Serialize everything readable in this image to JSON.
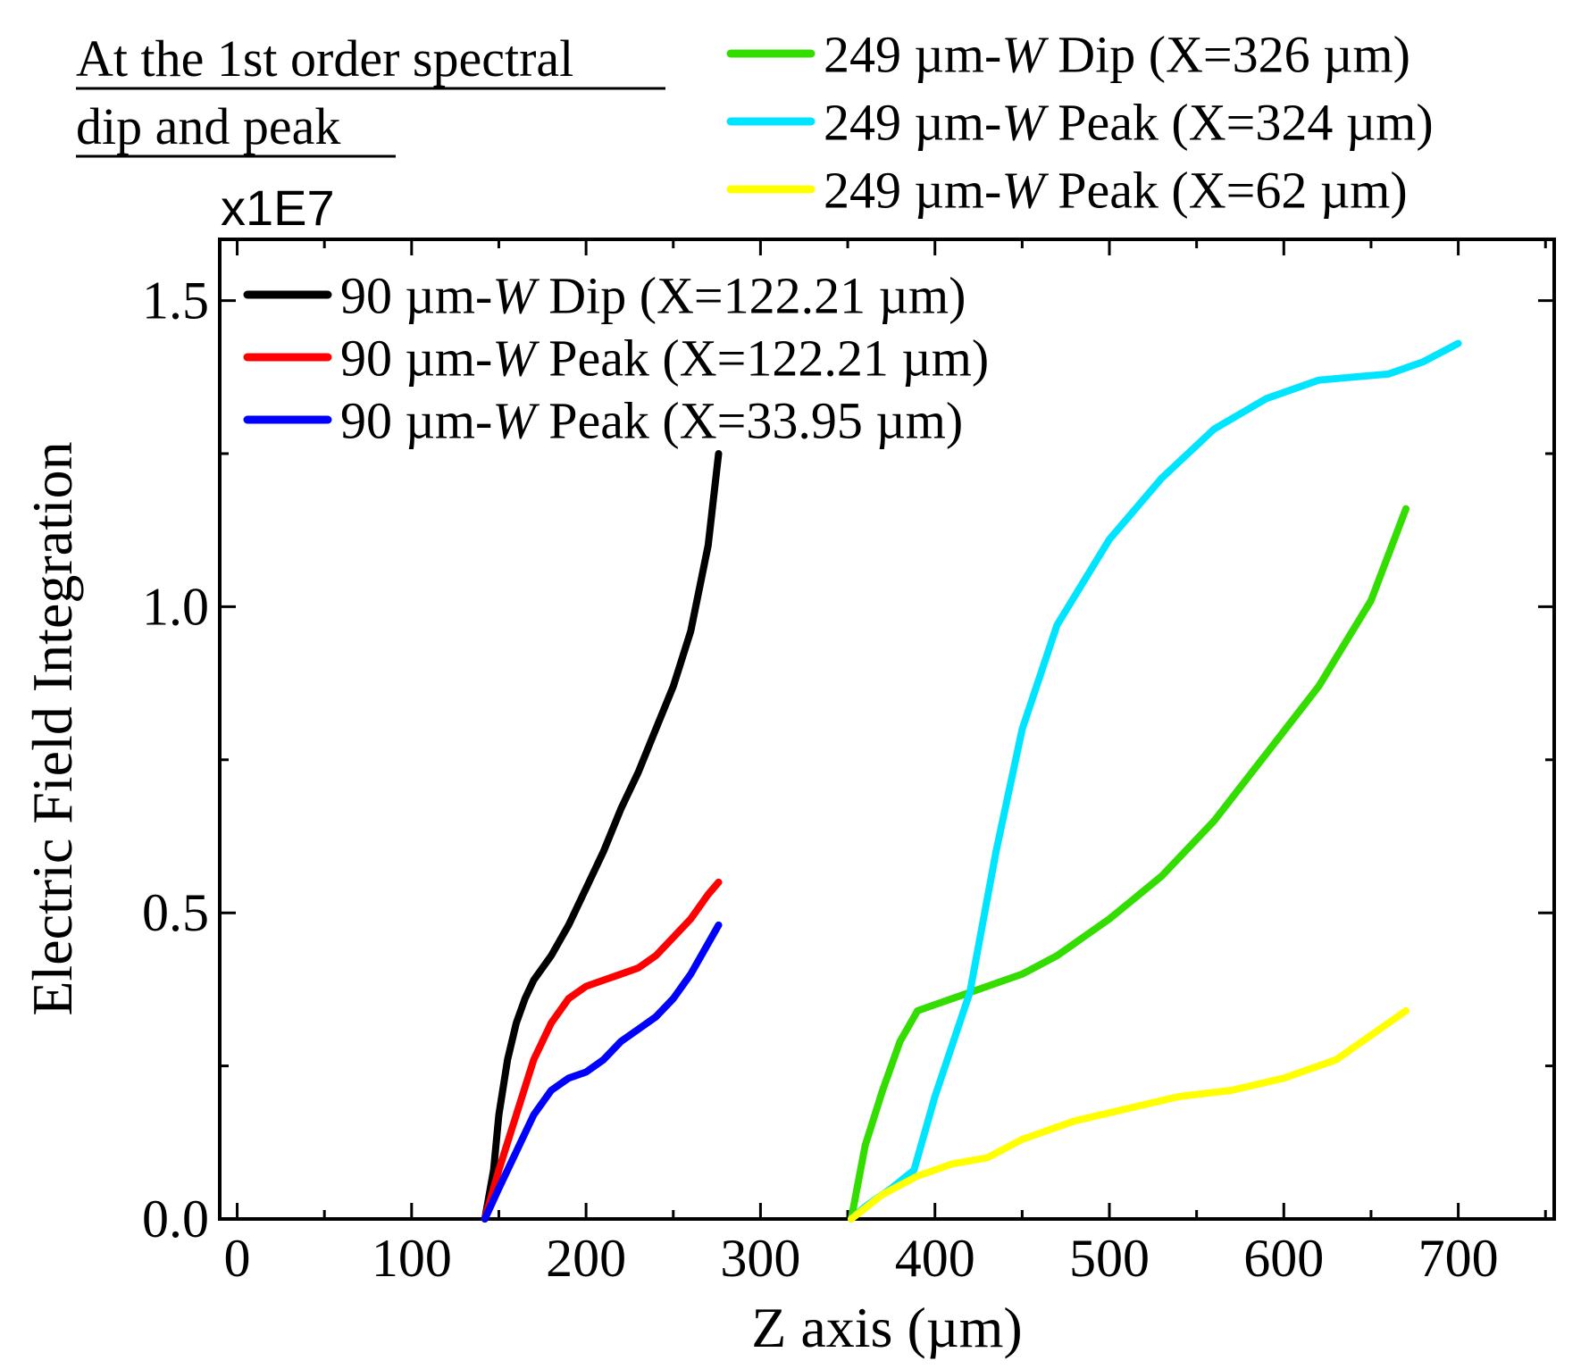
{
  "chart_data": {
    "type": "line",
    "annotation": {
      "line1": "At the 1st order spectral",
      "line2": "dip and peak"
    },
    "multiplier": "x1E7",
    "xlabel": "Z axis (µm)",
    "ylabel": "Electric Field Integration",
    "xlim": [
      -10,
      755
    ],
    "ylim": [
      0,
      1.6
    ],
    "xticks": [
      0,
      100,
      200,
      300,
      400,
      500,
      600,
      700
    ],
    "xtick_labels": [
      "0",
      "100",
      "200",
      "300",
      "400",
      "500",
      "600",
      "700"
    ],
    "yticks": [
      0,
      0.5,
      1.0,
      1.5
    ],
    "ytick_labels": [
      "0.0",
      "0.5",
      "1.0",
      "1.5"
    ],
    "legend_inner": [
      {
        "prefix": "90 µm-",
        "var": "W",
        "suffix": " Dip (X=122.21 µm)",
        "color": "#000000"
      },
      {
        "prefix": "90 µm-",
        "var": "W",
        "suffix": " Peak (X=122.21 µm)",
        "color": "#ff0000"
      },
      {
        "prefix": "90 µm-",
        "var": "W",
        "suffix": " Peak (X=33.95 µm)",
        "color": "#0000ff"
      }
    ],
    "legend_outer": [
      {
        "prefix": "249 µm-",
        "var": "W",
        "suffix": " Dip (X=326 µm)",
        "color": "#33dd00"
      },
      {
        "prefix": "249 µm-",
        "var": "W",
        "suffix": " Peak (X=324 µm)",
        "color": "#00e5ff"
      },
      {
        "prefix": "249 µm-",
        "var": "W",
        "suffix": " Peak (X=62 µm)",
        "color": "#ffff00"
      }
    ],
    "series": [
      {
        "name": "90 µm-W Dip (X=122.21 µm)",
        "color": "#000000",
        "points": [
          [
            142,
            0
          ],
          [
            147,
            0.08
          ],
          [
            150,
            0.17
          ],
          [
            155,
            0.26
          ],
          [
            160,
            0.32
          ],
          [
            165,
            0.36
          ],
          [
            170,
            0.39
          ],
          [
            180,
            0.43
          ],
          [
            190,
            0.48
          ],
          [
            200,
            0.54
          ],
          [
            210,
            0.6
          ],
          [
            220,
            0.67
          ],
          [
            230,
            0.73
          ],
          [
            240,
            0.8
          ],
          [
            250,
            0.87
          ],
          [
            260,
            0.96
          ],
          [
            270,
            1.1
          ],
          [
            276,
            1.25
          ]
        ]
      },
      {
        "name": "90 µm-W Peak (X=122.21 µm)",
        "color": "#ff0000",
        "points": [
          [
            142,
            0
          ],
          [
            150,
            0.08
          ],
          [
            160,
            0.17
          ],
          [
            170,
            0.26
          ],
          [
            180,
            0.32
          ],
          [
            190,
            0.36
          ],
          [
            200,
            0.38
          ],
          [
            210,
            0.39
          ],
          [
            220,
            0.4
          ],
          [
            230,
            0.41
          ],
          [
            240,
            0.43
          ],
          [
            250,
            0.46
          ],
          [
            260,
            0.49
          ],
          [
            270,
            0.53
          ],
          [
            276,
            0.55
          ]
        ]
      },
      {
        "name": "90 µm-W Peak (X=33.95 µm)",
        "color": "#0000ff",
        "points": [
          [
            142,
            0
          ],
          [
            150,
            0.05
          ],
          [
            160,
            0.11
          ],
          [
            170,
            0.17
          ],
          [
            180,
            0.21
          ],
          [
            190,
            0.23
          ],
          [
            200,
            0.24
          ],
          [
            210,
            0.26
          ],
          [
            220,
            0.29
          ],
          [
            230,
            0.31
          ],
          [
            240,
            0.33
          ],
          [
            250,
            0.36
          ],
          [
            260,
            0.4
          ],
          [
            270,
            0.45
          ],
          [
            276,
            0.48
          ]
        ]
      },
      {
        "name": "249 µm-W Dip (X=326 µm)",
        "color": "#33dd00",
        "points": [
          [
            352,
            0
          ],
          [
            360,
            0.12
          ],
          [
            370,
            0.21
          ],
          [
            380,
            0.29
          ],
          [
            390,
            0.34
          ],
          [
            400,
            0.35
          ],
          [
            410,
            0.36
          ],
          [
            430,
            0.38
          ],
          [
            450,
            0.4
          ],
          [
            470,
            0.43
          ],
          [
            500,
            0.49
          ],
          [
            530,
            0.56
          ],
          [
            560,
            0.65
          ],
          [
            590,
            0.76
          ],
          [
            620,
            0.87
          ],
          [
            650,
            1.01
          ],
          [
            670,
            1.16
          ]
        ]
      },
      {
        "name": "249 µm-W Peak (X=324 µm)",
        "color": "#00e5ff",
        "points": [
          [
            352,
            0
          ],
          [
            360,
            0.02
          ],
          [
            375,
            0.05
          ],
          [
            388,
            0.08
          ],
          [
            400,
            0.2
          ],
          [
            420,
            0.37
          ],
          [
            435,
            0.6
          ],
          [
            450,
            0.8
          ],
          [
            470,
            0.97
          ],
          [
            500,
            1.11
          ],
          [
            530,
            1.21
          ],
          [
            560,
            1.29
          ],
          [
            590,
            1.34
          ],
          [
            620,
            1.37
          ],
          [
            660,
            1.38
          ],
          [
            680,
            1.4
          ],
          [
            700,
            1.43
          ]
        ]
      },
      {
        "name": "249 µm-W Peak (X=62 µm)",
        "color": "#ffff00",
        "points": [
          [
            352,
            0
          ],
          [
            370,
            0.04
          ],
          [
            390,
            0.07
          ],
          [
            410,
            0.09
          ],
          [
            430,
            0.1
          ],
          [
            450,
            0.13
          ],
          [
            480,
            0.16
          ],
          [
            510,
            0.18
          ],
          [
            540,
            0.2
          ],
          [
            570,
            0.21
          ],
          [
            600,
            0.23
          ],
          [
            630,
            0.26
          ],
          [
            650,
            0.3
          ],
          [
            670,
            0.34
          ]
        ]
      }
    ]
  }
}
